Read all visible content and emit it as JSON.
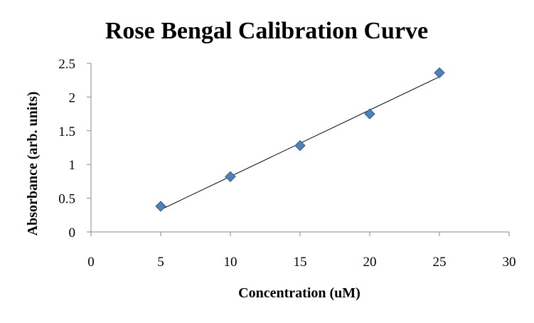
{
  "chart_data": {
    "type": "scatter",
    "title": "Rose Bengal Calibration Curve",
    "xlabel": "Concentration (uM)",
    "ylabel": "Absorbance (arb. units)",
    "xlim": [
      0,
      30
    ],
    "ylim": [
      0,
      2.5
    ],
    "x_ticks": [
      "0",
      "5",
      "10",
      "15",
      "20",
      "25",
      "30"
    ],
    "y_ticks": [
      "0",
      "0.5",
      "1",
      "1.5",
      "2",
      "2.5"
    ],
    "series": [
      {
        "x": [
          5,
          10,
          15,
          20,
          25
        ],
        "y": [
          0.38,
          0.82,
          1.28,
          1.75,
          2.36
        ],
        "marker": "diamond",
        "color": "#4F81BD",
        "edge_color": "#385D8A"
      }
    ],
    "trendline": {
      "type": "linear",
      "x_start": 5,
      "x_end": 25,
      "y_start": 0.33,
      "y_end": 2.3,
      "color": "#000000"
    },
    "grid": false,
    "legend": "none"
  }
}
